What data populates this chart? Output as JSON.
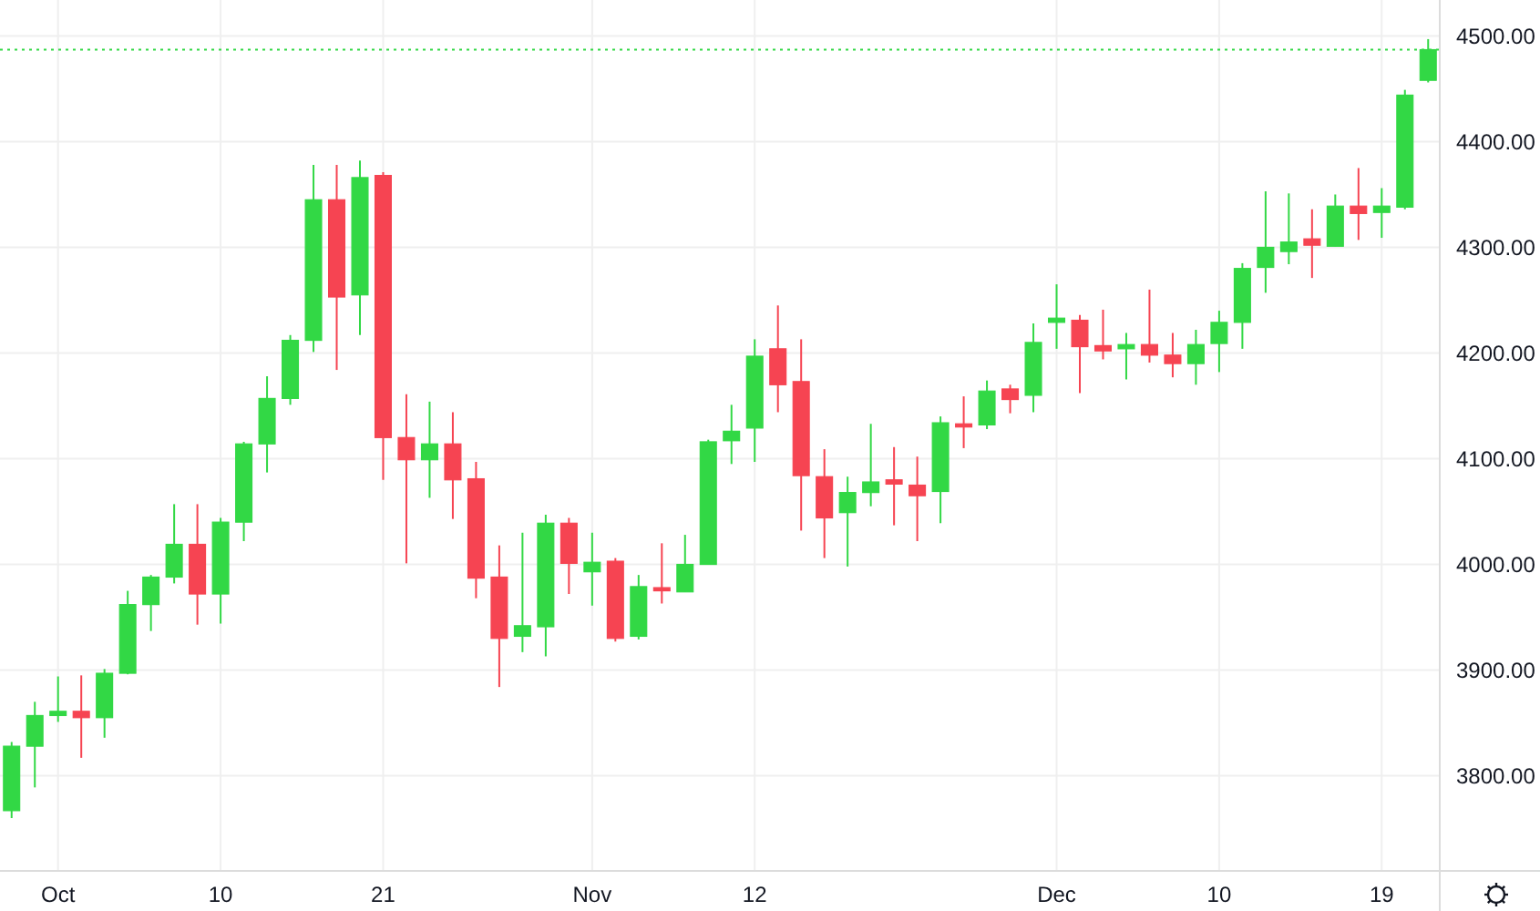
{
  "chart_data": {
    "type": "candlestick",
    "categories": [
      null,
      null,
      "Oct",
      null,
      null,
      null,
      null,
      null,
      null,
      "10",
      null,
      null,
      null,
      null,
      null,
      null,
      "21",
      null,
      null,
      null,
      null,
      null,
      null,
      null,
      null,
      "Nov",
      null,
      null,
      null,
      null,
      null,
      null,
      "12",
      null,
      null,
      null,
      null,
      null,
      null,
      null,
      null,
      null,
      null,
      null,
      null,
      "Dec",
      null,
      null,
      null,
      null,
      null,
      null,
      "10",
      null,
      null,
      null,
      null,
      null,
      null,
      "19",
      null,
      null
    ],
    "ohlc": [
      [
        3767,
        3832,
        3760,
        3828
      ],
      [
        3828,
        3870,
        3789,
        3857
      ],
      [
        3857,
        3894,
        3851,
        3861
      ],
      [
        3861,
        3895,
        3817,
        3855
      ],
      [
        3855,
        3901,
        3836,
        3897
      ],
      [
        3897,
        3975,
        3896,
        3962
      ],
      [
        3962,
        3990,
        3937,
        3988
      ],
      [
        3988,
        4057,
        3982,
        4019
      ],
      [
        4019,
        4057,
        3943,
        3972
      ],
      [
        3972,
        4044,
        3944,
        4040
      ],
      [
        4040,
        4116,
        4022,
        4114
      ],
      [
        4114,
        4178,
        4087,
        4157
      ],
      [
        4157,
        4217,
        4151,
        4212
      ],
      [
        4212,
        4378,
        4201,
        4345
      ],
      [
        4345,
        4378,
        4184,
        4253
      ],
      [
        4255,
        4382,
        4217,
        4366
      ],
      [
        4368,
        4371,
        4080,
        4120
      ],
      [
        4120,
        4161,
        4001,
        4099
      ],
      [
        4099,
        4154,
        4063,
        4114
      ],
      [
        4114,
        4144,
        4043,
        4080
      ],
      [
        4081,
        4097,
        3968,
        3987
      ],
      [
        3988,
        4018,
        3884,
        3930
      ],
      [
        3932,
        4030,
        3917,
        3942
      ],
      [
        3941,
        4047,
        3913,
        4039
      ],
      [
        4039,
        4044,
        3972,
        4001
      ],
      [
        3993,
        4030,
        3961,
        4002
      ],
      [
        4003,
        4006,
        3927,
        3930
      ],
      [
        3932,
        3990,
        3929,
        3979
      ],
      [
        3978,
        4020,
        3963,
        3975
      ],
      [
        3974,
        4028,
        3974,
        4000
      ],
      [
        4000,
        4118,
        4000,
        4116
      ],
      [
        4117,
        4151,
        4095,
        4126
      ],
      [
        4129,
        4213,
        4097,
        4197
      ],
      [
        4204,
        4245,
        4144,
        4170
      ],
      [
        4173,
        4213,
        4032,
        4084
      ],
      [
        4083,
        4109,
        4006,
        4044
      ],
      [
        4049,
        4083,
        3998,
        4068
      ],
      [
        4068,
        4133,
        4055,
        4078
      ],
      [
        4080,
        4111,
        4037,
        4076
      ],
      [
        4075,
        4102,
        4022,
        4065
      ],
      [
        4069,
        4140,
        4039,
        4134
      ],
      [
        4133,
        4159,
        4110,
        4130
      ],
      [
        4132,
        4174,
        4128,
        4164
      ],
      [
        4166,
        4170,
        4143,
        4156
      ],
      [
        4160,
        4228,
        4144,
        4210
      ],
      [
        4229,
        4265,
        4204,
        4233
      ],
      [
        4231,
        4236,
        4162,
        4206
      ],
      [
        4207,
        4241,
        4194,
        4202
      ],
      [
        4204,
        4219,
        4175,
        4208
      ],
      [
        4208,
        4260,
        4191,
        4198
      ],
      [
        4198,
        4219,
        4177,
        4190
      ],
      [
        4190,
        4222,
        4170,
        4208
      ],
      [
        4209,
        4240,
        4182,
        4229
      ],
      [
        4229,
        4285,
        4204,
        4280
      ],
      [
        4281,
        4353,
        4257,
        4300
      ],
      [
        4296,
        4351,
        4284,
        4305
      ],
      [
        4308,
        4336,
        4271,
        4302
      ],
      [
        4301,
        4350,
        4301,
        4339
      ],
      [
        4339,
        4375,
        4307,
        4332
      ],
      [
        4333,
        4356,
        4309,
        4339
      ],
      [
        4338,
        4449,
        4336,
        4444
      ],
      [
        4458,
        4497,
        4456,
        4487
      ]
    ],
    "colors": [
      "#32d845",
      "#32d845",
      "#32d845",
      "#f64452",
      "#32d845",
      "#32d845",
      "#32d845",
      "#32d845",
      "#f64452",
      "#32d845",
      "#32d845",
      "#32d845",
      "#32d845",
      "#32d845",
      "#f64452",
      "#32d845",
      "#f64452",
      "#f64452",
      "#32d845",
      "#f64452",
      "#f64452",
      "#f64452",
      "#32d845",
      "#32d845",
      "#f64452",
      "#32d845",
      "#f64452",
      "#32d845",
      "#f64452",
      "#32d845",
      "#32d845",
      "#32d845",
      "#32d845",
      "#f64452",
      "#f64452",
      "#f64452",
      "#32d845",
      "#32d845",
      "#f64452",
      "#f64452",
      "#32d845",
      "#f64452",
      "#32d845",
      "#f64452",
      "#32d845",
      "#32d845",
      "#f64452",
      "#f64452",
      "#32d845",
      "#f64452",
      "#f64452",
      "#32d845",
      "#32d845",
      "#32d845",
      "#32d845",
      "#32d845",
      "#f64452",
      "#32d845",
      "#f64452",
      "#32d845",
      "#32d845",
      "#32d845"
    ],
    "ylim": [
      3710,
      4534
    ],
    "yticks": [
      {
        "value": 3800,
        "label": "3800.00"
      },
      {
        "value": 3900,
        "label": "3900.00"
      },
      {
        "value": 4000,
        "label": "4000.00"
      },
      {
        "value": 4100,
        "label": "4100.00"
      },
      {
        "value": 4200,
        "label": "4200.00"
      },
      {
        "value": 4300,
        "label": "4300.00"
      },
      {
        "value": 4400,
        "label": "4400.00"
      },
      {
        "value": 4500,
        "label": "4500.00"
      }
    ],
    "grid": true,
    "ref_lines": [
      {
        "axis": "y",
        "value": 4487,
        "color": "#32d845",
        "line_style": "dotted"
      }
    ]
  }
}
